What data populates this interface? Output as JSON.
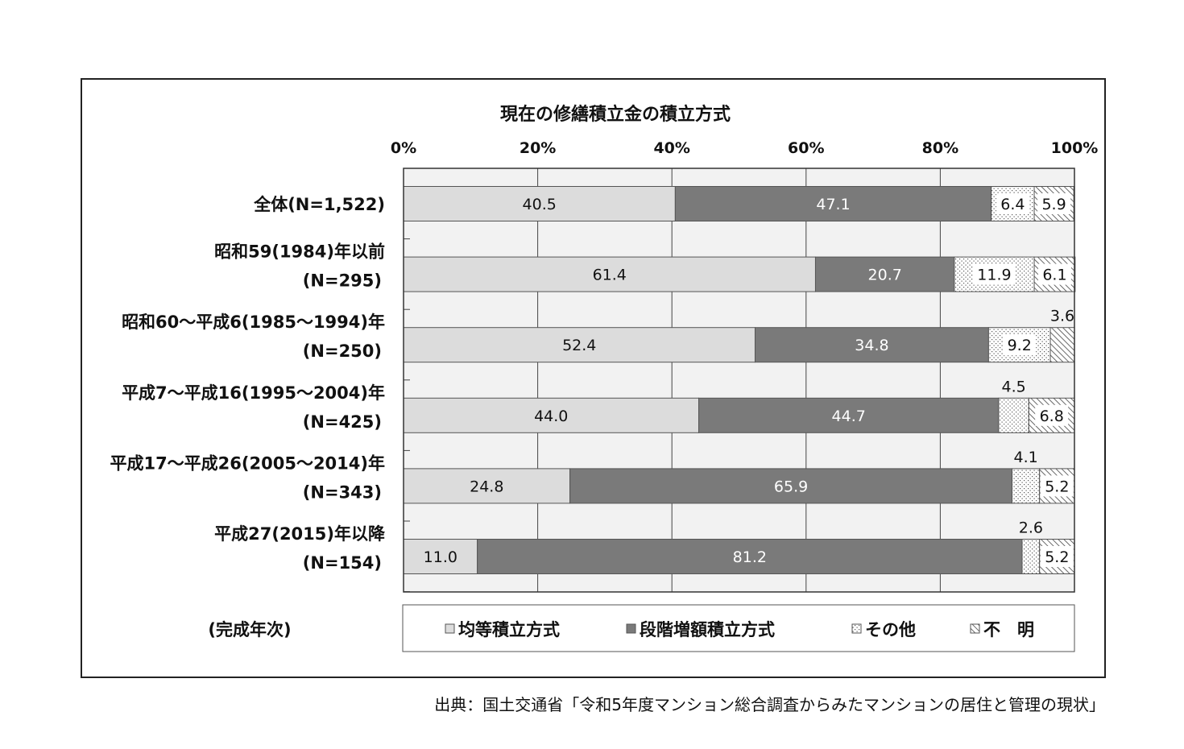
{
  "chart_data": {
    "type": "bar",
    "orientation": "horizontal",
    "stacked": "percent",
    "title": "現在の修繕積立金の積立方式",
    "x_ticks": [
      "0%",
      "20%",
      "40%",
      "60%",
      "80%",
      "100%"
    ],
    "xlim": [
      0,
      100
    ],
    "grid": true,
    "categories": [
      [
        "全体(N=1,522)"
      ],
      [
        "昭和59(1984)年以前",
        "(N=295)"
      ],
      [
        "昭和60〜平成6(1985〜1994)年",
        "(N=250)"
      ],
      [
        "平成7〜平成16(1995〜2004)年",
        "(N=425)"
      ],
      [
        "平成17〜平成26(2005〜2014)年",
        "(N=343)"
      ],
      [
        "平成27(2015)年以降",
        "(N=154)"
      ]
    ],
    "category_axis_label": "(完成年次)",
    "series": [
      {
        "name": "均等積立方式",
        "values": [
          40.5,
          61.4,
          52.4,
          44.0,
          24.8,
          11.0
        ],
        "labels": [
          "40.5",
          "61.4",
          "52.4",
          "44.0",
          "24.8",
          "11.0"
        ],
        "color": "#dcdcdc",
        "pattern": "solid"
      },
      {
        "name": "段階増額積立方式",
        "values": [
          47.1,
          20.7,
          34.8,
          44.7,
          65.9,
          81.2
        ],
        "labels": [
          "47.1",
          "20.7",
          "34.8",
          "44.7",
          "65.9",
          "81.2"
        ],
        "color": "#7a7a7a",
        "pattern": "solid"
      },
      {
        "name": "その他",
        "values": [
          6.4,
          11.9,
          9.2,
          4.5,
          4.1,
          2.6
        ],
        "labels": [
          "6.4",
          "11.9",
          "9.2",
          "4.5",
          "4.1",
          "2.6"
        ],
        "color": "#ffffff",
        "pattern": "dots"
      },
      {
        "name": "不　明",
        "values": [
          5.9,
          6.1,
          3.6,
          6.8,
          5.2,
          5.2
        ],
        "labels": [
          "5.9",
          "6.1",
          "3.6",
          "6.8",
          "5.2",
          "5.2"
        ],
        "color": "#ffffff",
        "pattern": "hatch"
      }
    ],
    "legend_placement": "bottom"
  },
  "source": "出典：国土交通省「令和5年度マンション総合調査からみたマンションの居住と管理の現状」"
}
